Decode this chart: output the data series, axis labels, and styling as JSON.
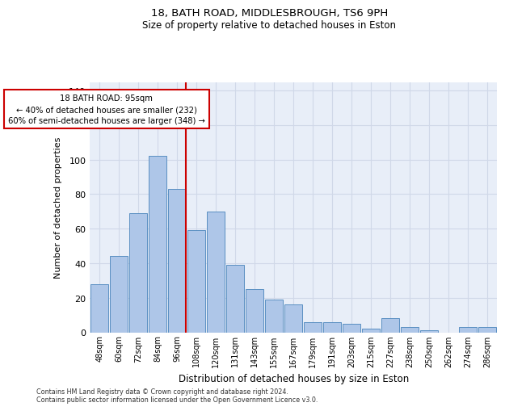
{
  "title1": "18, BATH ROAD, MIDDLESBROUGH, TS6 9PH",
  "title2": "Size of property relative to detached houses in Eston",
  "xlabel": "Distribution of detached houses by size in Eston",
  "ylabel": "Number of detached properties",
  "categories": [
    "48sqm",
    "60sqm",
    "72sqm",
    "84sqm",
    "96sqm",
    "108sqm",
    "120sqm",
    "131sqm",
    "143sqm",
    "155sqm",
    "167sqm",
    "179sqm",
    "191sqm",
    "203sqm",
    "215sqm",
    "227sqm",
    "238sqm",
    "250sqm",
    "262sqm",
    "274sqm",
    "286sqm"
  ],
  "values": [
    28,
    44,
    69,
    102,
    83,
    59,
    70,
    39,
    25,
    19,
    16,
    6,
    6,
    5,
    2,
    8,
    3,
    1,
    0,
    3,
    3
  ],
  "bar_color": "#aec6e8",
  "bar_edge_color": "#5a8fc2",
  "vline_color": "#cc0000",
  "annotation_text": "18 BATH ROAD: 95sqm\n← 40% of detached houses are smaller (232)\n60% of semi-detached houses are larger (348) →",
  "annotation_box_color": "#ffffff",
  "annotation_box_edge": "#cc0000",
  "ylim": [
    0,
    145
  ],
  "yticks": [
    0,
    20,
    40,
    60,
    80,
    100,
    120,
    140
  ],
  "grid_color": "#d0d8e8",
  "background_color": "#e8eef8",
  "footer1": "Contains HM Land Registry data © Crown copyright and database right 2024.",
  "footer2": "Contains public sector information licensed under the Open Government Licence v3.0."
}
